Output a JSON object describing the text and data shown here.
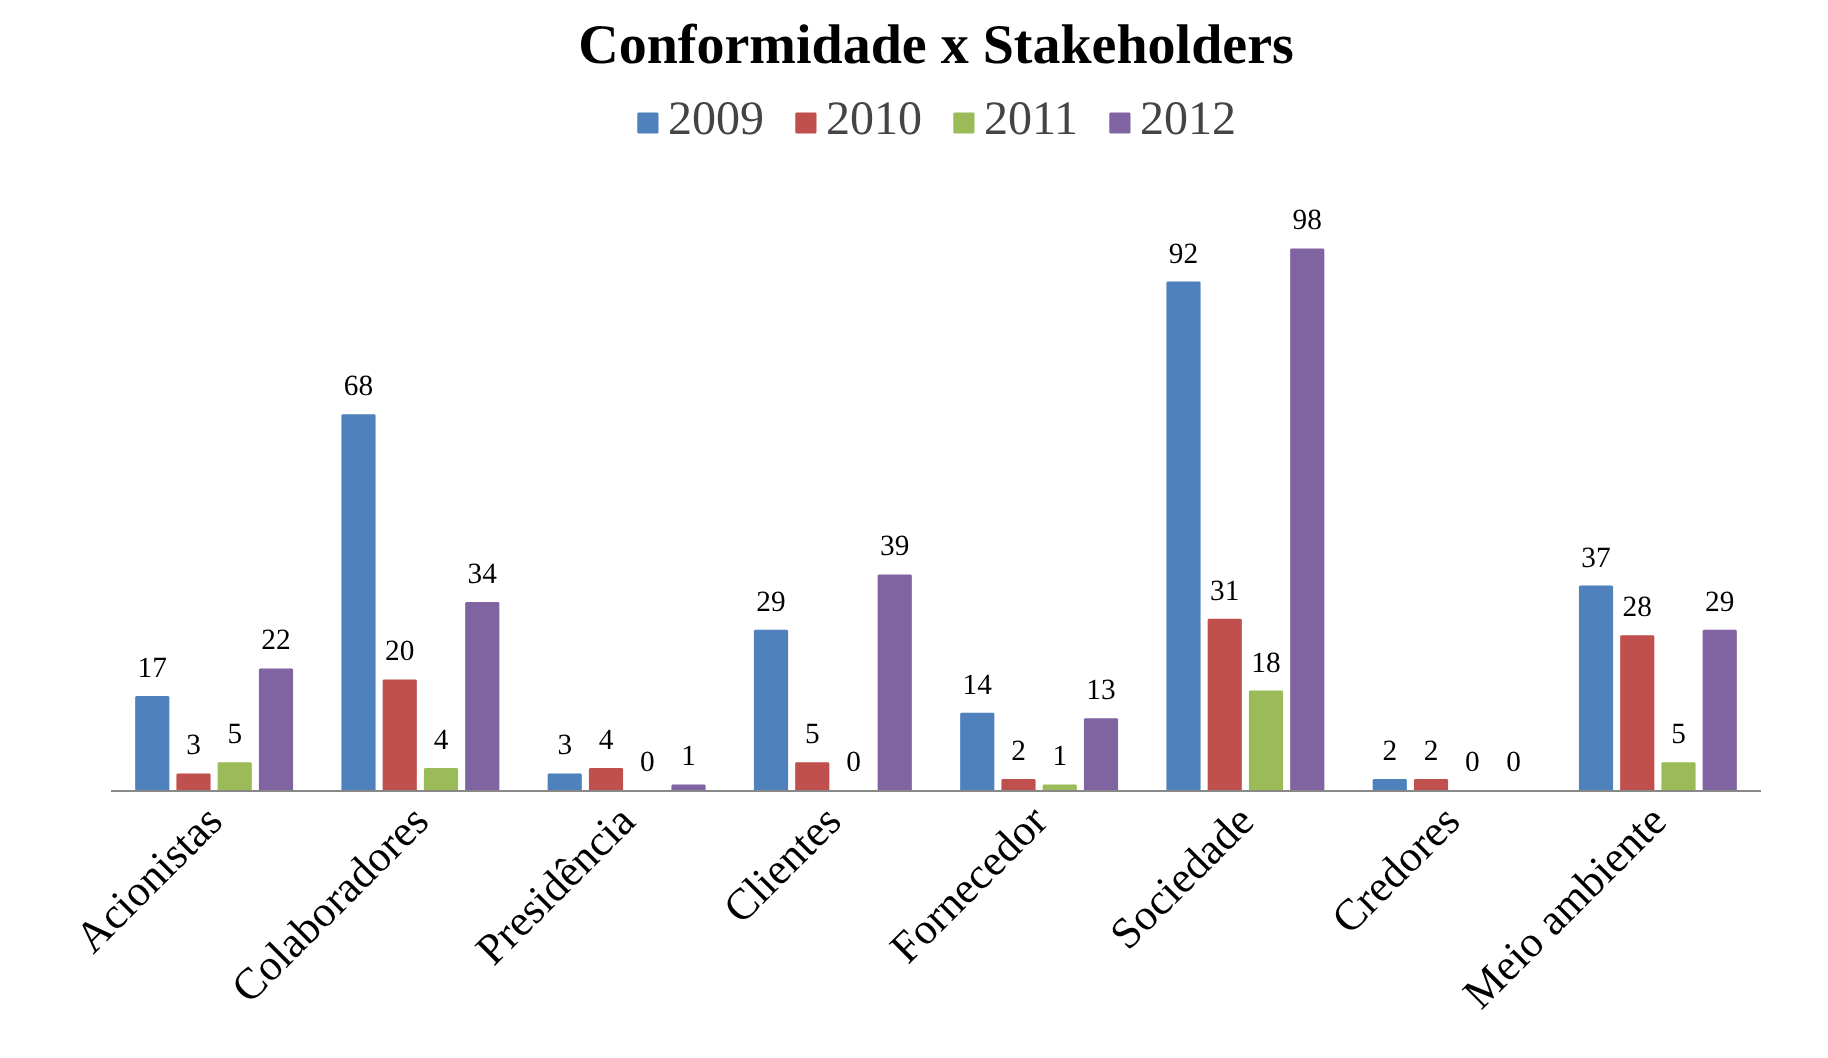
{
  "chart_data": {
    "type": "bar",
    "title": "Conformidade x Stakeholders",
    "categories": [
      "Acionistas",
      "Colaboradores",
      "Presidência",
      "Clientes",
      "Fornecedor",
      "Sociedade",
      "Credores",
      "Meio ambiente"
    ],
    "series": [
      {
        "name": "2009",
        "color": "#4f81bd",
        "values": [
          17,
          68,
          3,
          29,
          14,
          92,
          2,
          37
        ]
      },
      {
        "name": "2010",
        "color": "#c0504d",
        "values": [
          3,
          20,
          4,
          5,
          2,
          31,
          2,
          28
        ]
      },
      {
        "name": "2011",
        "color": "#9bbb59",
        "values": [
          5,
          4,
          0,
          0,
          1,
          18,
          0,
          5
        ]
      },
      {
        "name": "2012",
        "color": "#8064a2",
        "values": [
          22,
          34,
          1,
          39,
          13,
          98,
          0,
          29
        ]
      }
    ],
    "data_labels": true,
    "legend": "top"
  }
}
